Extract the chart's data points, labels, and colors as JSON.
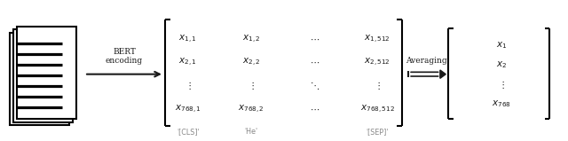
{
  "bg_color": "#ffffff",
  "arrow_color": "#1a1a1a",
  "text_color": "#1a1a1a",
  "gray_label_color": "#888888",
  "bert_label": "BERT\nencoding",
  "averaging_label": "Averaging",
  "cls_label": "'[CLS]'",
  "he_label": "'He'",
  "sep_label": "'[SEP]'",
  "matrix_entries": [
    [
      "x_{1,1}",
      "x_{1,2}",
      "\\cdots",
      "x_{1,512}"
    ],
    [
      "x_{2,1}",
      "x_{2,2}",
      "\\cdots",
      "x_{2,512}"
    ],
    [
      "\\vdots",
      "\\vdots",
      "\\ddots",
      "\\vdots"
    ],
    [
      "x_{768,1}",
      "x_{768,2}",
      "\\cdots",
      "x_{768,512}"
    ]
  ],
  "vector_entries": [
    "x_1",
    "x_2",
    "\\vdots",
    "x_{768}"
  ],
  "figsize": [
    6.4,
    1.59
  ],
  "dpi": 100
}
